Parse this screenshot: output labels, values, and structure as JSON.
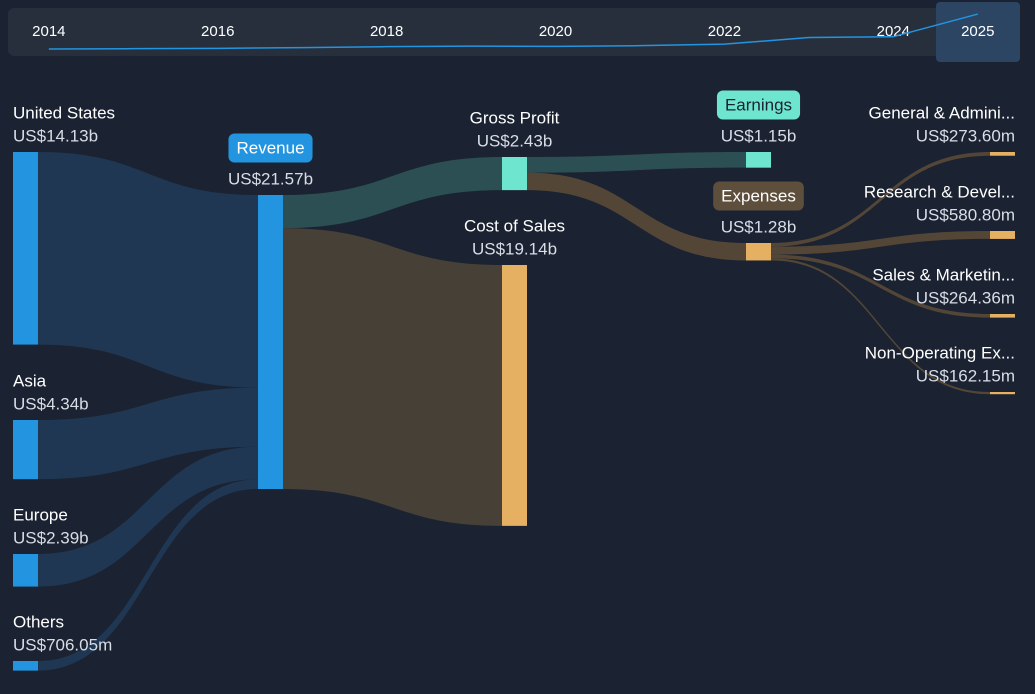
{
  "chart_data": [
    {
      "type": "sankey",
      "nodes": [
        {
          "label": "United States",
          "value": 14130000000,
          "value_label": "US$14.13b",
          "color": "#2394df"
        },
        {
          "label": "Asia",
          "value": 4340000000,
          "value_label": "US$4.34b",
          "color": "#2394df"
        },
        {
          "label": "Europe",
          "value": 2390000000,
          "value_label": "US$2.39b",
          "color": "#2394df"
        },
        {
          "label": "Others",
          "value": 706050000,
          "value_label": "US$706.05m",
          "color": "#2394df"
        },
        {
          "label": "Revenue",
          "value": 21570000000,
          "value_label": "US$21.57b",
          "color": "#2394df",
          "badge": "#2394df"
        },
        {
          "label": "Gross Profit",
          "value": 2430000000,
          "value_label": "US$2.43b",
          "color": "#6ee5cf"
        },
        {
          "label": "Cost of Sales",
          "value": 19140000000,
          "value_label": "US$19.14b",
          "color": "#e6b062"
        },
        {
          "label": "Earnings",
          "value": 1150000000,
          "value_label": "US$1.15b",
          "color": "#6ee5cf",
          "badge": "#6ee5cf"
        },
        {
          "label": "Expenses",
          "value": 1280000000,
          "value_label": "US$1.28b",
          "color": "#e6b062",
          "badge": "#5e4e3c"
        },
        {
          "label": "General & Admini...",
          "value": 273600000,
          "value_label": "US$273.60m",
          "color": "#e6b062"
        },
        {
          "label": "Research & Devel...",
          "value": 580800000,
          "value_label": "US$580.80m",
          "color": "#e6b062"
        },
        {
          "label": "Sales & Marketin...",
          "value": 264360000,
          "value_label": "US$264.36m",
          "color": "#e6b062"
        },
        {
          "label": "Non-Operating Ex...",
          "value": 162150000,
          "value_label": "US$162.15m",
          "color": "#e6b062"
        }
      ],
      "links": [
        {
          "source": 0,
          "target": 4,
          "color": "#203a57"
        },
        {
          "source": 1,
          "target": 4,
          "color": "#203a57"
        },
        {
          "source": 2,
          "target": 4,
          "color": "#203a57"
        },
        {
          "source": 3,
          "target": 4,
          "color": "#203a57"
        },
        {
          "source": 4,
          "target": 5,
          "color": "#2f5458"
        },
        {
          "source": 4,
          "target": 6,
          "color": "#4d4438"
        },
        {
          "source": 5,
          "target": 7,
          "color": "#2f5458"
        },
        {
          "source": 5,
          "target": 8,
          "color": "#5a4a38"
        },
        {
          "source": 8,
          "target": 9,
          "color": "#5a4a38"
        },
        {
          "source": 8,
          "target": 10,
          "color": "#5a4a38"
        },
        {
          "source": 8,
          "target": 11,
          "color": "#5a4a38"
        },
        {
          "source": 8,
          "target": 12,
          "color": "#5a4a38"
        }
      ]
    },
    {
      "type": "line",
      "x": [
        2014,
        2015,
        2016,
        2017,
        2018,
        2019,
        2020,
        2021,
        2022,
        2023,
        2024,
        2025
      ],
      "values": [
        0.6,
        0.8,
        1.0,
        1.4,
        2.0,
        2.3,
        2.2,
        2.6,
        3.5,
        7.5,
        8.0,
        21.57
      ],
      "xlim": [
        2013.54,
        2025.5
      ],
      "ylim": [
        0,
        24
      ],
      "xticks": [
        2014,
        2016,
        2018,
        2020,
        2022,
        2024,
        2025
      ],
      "color": "#2394df"
    }
  ]
}
